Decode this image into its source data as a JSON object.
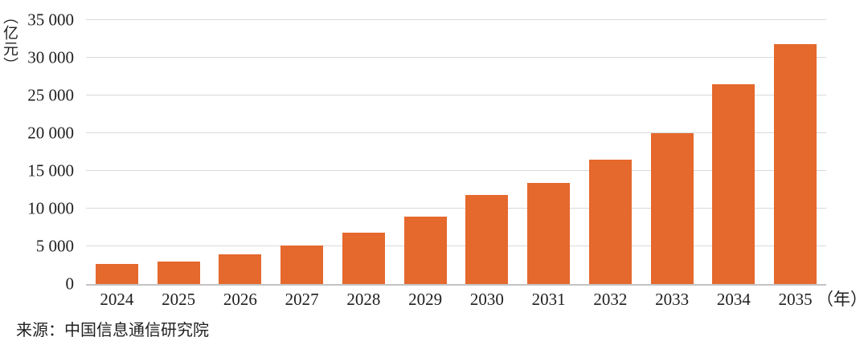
{
  "chart_data": {
    "type": "bar",
    "title": "",
    "unit_label": "（亿元）",
    "xaxis_suffix": "（年）",
    "categories": [
      "2024",
      "2025",
      "2026",
      "2027",
      "2028",
      "2029",
      "2030",
      "2031",
      "2032",
      "2033",
      "2034",
      "2035"
    ],
    "values": [
      2700,
      3000,
      3900,
      5100,
      6800,
      8900,
      11800,
      13400,
      16500,
      20000,
      26500,
      31800
    ],
    "ylim": [
      0,
      35000
    ],
    "y_ticks": [
      {
        "value": 0,
        "label": "0"
      },
      {
        "value": 5000,
        "label": "5 000"
      },
      {
        "value": 10000,
        "label": "10 000"
      },
      {
        "value": 15000,
        "label": "15 000"
      },
      {
        "value": 20000,
        "label": "20 000"
      },
      {
        "value": 25000,
        "label": "25 000"
      },
      {
        "value": 30000,
        "label": "30 000"
      },
      {
        "value": 35000,
        "label": "35 000"
      }
    ],
    "bar_color": "#E5682D",
    "gridline_color": "#d9d9d9",
    "grid": true,
    "legend": "none"
  },
  "footer": {
    "source": "来源：中国信息通信研究院"
  }
}
